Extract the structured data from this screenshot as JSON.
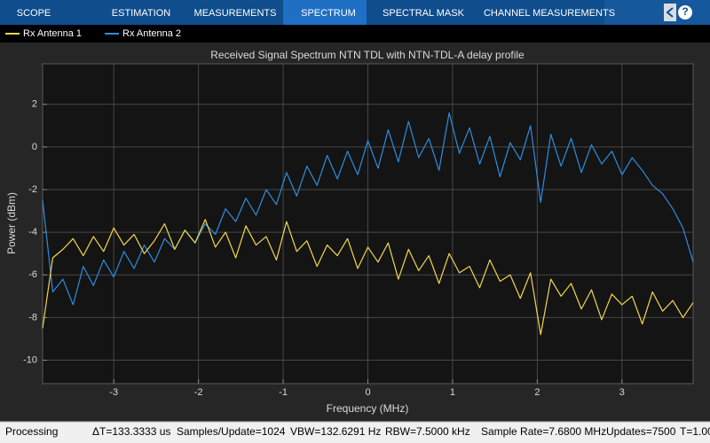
{
  "toolbar": {
    "tabs": [
      "SCOPE",
      "ESTIMATION",
      "MEASUREMENTS",
      "SPECTRUM",
      "SPECTRAL MASK",
      "CHANNEL MEASUREMENTS"
    ],
    "help": "?"
  },
  "chart_data": {
    "type": "line",
    "title": "Received Signal Spectrum NTN TDL with NTN-TDL-A delay profile",
    "x_label": "Frequency (MHz)",
    "y_label": "Power (dBm)",
    "xlim": [
      -3.84,
      3.84
    ],
    "ylim": [
      -11.1,
      3.9
    ],
    "xticks": [
      -3,
      -2,
      -1,
      0,
      1,
      2,
      3
    ],
    "yticks": [
      -10,
      -8,
      -6,
      -4,
      -2,
      0,
      2
    ],
    "grid": true,
    "legend": "top-left",
    "x": [
      -3.84,
      -3.72,
      -3.6,
      -3.48,
      -3.36,
      -3.24,
      -3.12,
      -3.0,
      -2.88,
      -2.76,
      -2.64,
      -2.52,
      -2.4,
      -2.28,
      -2.16,
      -2.04,
      -1.92,
      -1.8,
      -1.68,
      -1.56,
      -1.44,
      -1.32,
      -1.2,
      -1.08,
      -0.96,
      -0.84,
      -0.72,
      -0.6,
      -0.48,
      -0.36,
      -0.24,
      -0.12,
      0.0,
      0.12,
      0.24,
      0.36,
      0.48,
      0.6,
      0.72,
      0.84,
      0.96,
      1.08,
      1.2,
      1.32,
      1.44,
      1.56,
      1.68,
      1.8,
      1.92,
      2.04,
      2.16,
      2.28,
      2.4,
      2.52,
      2.64,
      2.76,
      2.88,
      3.0,
      3.12,
      3.24,
      3.36,
      3.48,
      3.6,
      3.72,
      3.84
    ],
    "series": [
      {
        "name": "Rx Antenna 1",
        "color": "#f2d64b",
        "values": [
          -8.5,
          -5.2,
          -4.8,
          -4.3,
          -5.1,
          -4.2,
          -4.9,
          -3.8,
          -4.6,
          -4.1,
          -5.0,
          -4.4,
          -3.6,
          -4.8,
          -3.9,
          -4.5,
          -3.4,
          -4.7,
          -4.0,
          -5.2,
          -3.7,
          -4.6,
          -4.2,
          -5.3,
          -3.5,
          -4.9,
          -4.4,
          -5.6,
          -4.6,
          -5.1,
          -4.3,
          -5.7,
          -4.7,
          -5.4,
          -4.5,
          -6.2,
          -4.8,
          -5.8,
          -5.1,
          -6.4,
          -5.0,
          -5.9,
          -5.6,
          -6.6,
          -5.3,
          -6.3,
          -6.0,
          -7.1,
          -5.9,
          -8.8,
          -6.2,
          -7.0,
          -6.4,
          -7.6,
          -6.7,
          -8.1,
          -6.9,
          -7.4,
          -7.0,
          -8.3,
          -6.8,
          -7.7,
          -7.2,
          -8.0,
          -7.3
        ]
      },
      {
        "name": "Rx Antenna 2",
        "color": "#2d8ddf",
        "values": [
          -2.5,
          -6.8,
          -6.2,
          -7.4,
          -5.6,
          -6.5,
          -5.3,
          -6.1,
          -4.9,
          -5.7,
          -4.6,
          -5.4,
          -4.3,
          -4.8,
          -3.9,
          -4.5,
          -3.6,
          -4.1,
          -2.9,
          -3.5,
          -2.4,
          -3.2,
          -2.0,
          -2.7,
          -1.2,
          -2.3,
          -0.9,
          -1.8,
          -0.4,
          -1.5,
          -0.2,
          -1.3,
          0.3,
          -1.0,
          0.8,
          -0.7,
          1.2,
          -0.5,
          0.4,
          -1.1,
          1.6,
          -0.3,
          0.9,
          -0.8,
          0.5,
          -1.4,
          0.2,
          -0.6,
          1.0,
          -2.6,
          0.6,
          -0.9,
          0.4,
          -1.2,
          0.1,
          -0.8,
          -0.2,
          -1.3,
          -0.5,
          -1.1,
          -1.8,
          -2.2,
          -2.9,
          -3.8,
          -5.4
        ]
      }
    ]
  },
  "status": {
    "state": "Processing",
    "items": [
      "ΔT=133.3333 us",
      "Samples/Update=1024",
      "VBW=132.6291 Hz",
      "RBW=7.5000 kHz",
      "Sample Rate=7.6800 MHz",
      "Updates=7500",
      "T=1.00"
    ]
  }
}
